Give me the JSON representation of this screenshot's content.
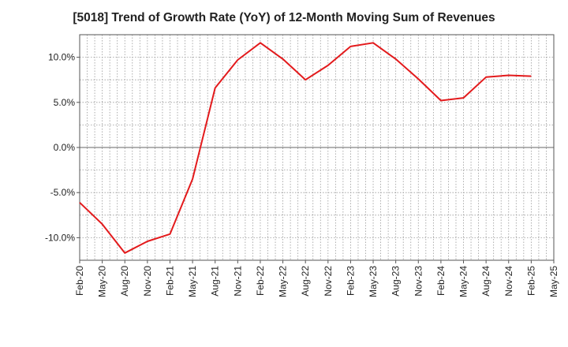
{
  "chart_data": {
    "type": "line",
    "title": "[5018]  Trend of Growth Rate (YoY) of 12-Month Moving Sum of Revenues",
    "xlabel": "",
    "ylabel": "",
    "ylim": [
      -12.5,
      12.5
    ],
    "ytick_values": [
      -10,
      -5,
      0,
      5,
      10
    ],
    "ytick_labels": [
      "-10.0%",
      "-5.0%",
      "0.0%",
      "5.0%",
      "10.0%"
    ],
    "xtick_labels": [
      "Feb-20",
      "May-20",
      "Aug-20",
      "Nov-20",
      "Feb-21",
      "May-21",
      "Aug-21",
      "Nov-21",
      "Feb-22",
      "May-22",
      "Aug-22",
      "Nov-22",
      "Feb-23",
      "May-23",
      "Aug-23",
      "Nov-23",
      "Feb-24",
      "May-24",
      "Aug-24",
      "Nov-24",
      "Feb-25",
      "May-25"
    ],
    "grid": true,
    "line_color": "#e31a1c",
    "series": [
      {
        "x": [
          "Feb-20",
          "May-20",
          "Aug-20",
          "Nov-20",
          "Feb-21",
          "May-21",
          "Aug-21",
          "Nov-21",
          "Feb-22",
          "May-22",
          "Aug-22",
          "Nov-22",
          "Feb-23",
          "May-23",
          "Aug-23",
          "Nov-23",
          "Feb-24",
          "May-24",
          "Aug-24",
          "Nov-24",
          "Feb-25"
        ],
        "values": [
          -6.1,
          -8.5,
          -11.7,
          -10.4,
          -9.6,
          -3.5,
          6.6,
          9.7,
          11.6,
          9.8,
          7.5,
          9.1,
          11.2,
          11.6,
          9.8,
          7.6,
          5.2,
          5.5,
          7.8,
          8.0,
          7.9
        ]
      }
    ]
  }
}
